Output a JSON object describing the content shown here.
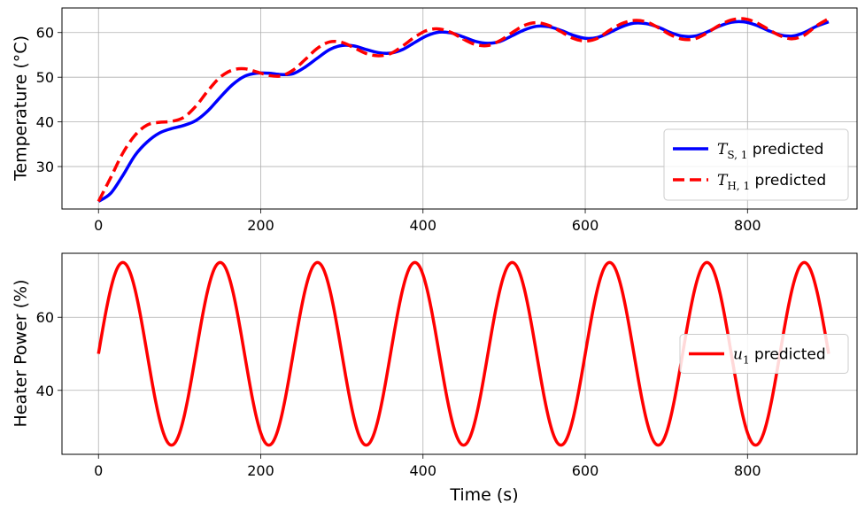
{
  "chart_data": [
    {
      "type": "line",
      "xlabel": "",
      "ylabel": "Temperature (°C)",
      "xlim": [
        -45,
        935
      ],
      "ylim": [
        20.5,
        65.5
      ],
      "xticks": [
        0,
        200,
        400,
        600,
        800
      ],
      "xtick_labels": [
        "0",
        "200",
        "400",
        "600",
        "800"
      ],
      "yticks": [
        30,
        40,
        50,
        60
      ],
      "ytick_labels": [
        "30",
        "40",
        "50",
        "60"
      ],
      "grid": true,
      "legend_position": "lower-right",
      "series": [
        {
          "name": "T_{S,1} predicted",
          "legend": {
            "symbol": "T",
            "sub": "S, 1",
            "text": " predicted"
          },
          "color": "#0000ff",
          "style": "solid",
          "x": [
            0,
            15,
            30,
            45,
            60,
            75,
            90,
            105,
            120,
            135,
            150,
            165,
            180,
            195,
            210,
            225,
            240,
            255,
            270,
            285,
            300,
            315,
            330,
            345,
            360,
            375,
            390,
            405,
            420,
            435,
            450,
            465,
            480,
            495,
            510,
            525,
            540,
            555,
            570,
            585,
            600,
            615,
            630,
            645,
            660,
            675,
            690,
            705,
            720,
            735,
            750,
            765,
            780,
            795,
            810,
            825,
            840,
            855,
            870,
            885,
            900
          ],
          "y": [
            22.2,
            24.0,
            28.0,
            32.5,
            35.5,
            37.5,
            38.5,
            39.2,
            40.3,
            42.5,
            45.5,
            48.3,
            50.2,
            50.9,
            50.9,
            50.6,
            50.8,
            52.3,
            54.3,
            56.2,
            57.1,
            57.0,
            56.2,
            55.5,
            55.4,
            56.2,
            57.8,
            59.3,
            60.1,
            59.9,
            59.0,
            58.0,
            57.6,
            58.0,
            59.3,
            60.6,
            61.4,
            61.3,
            60.5,
            59.4,
            58.7,
            58.9,
            60.0,
            61.3,
            62.1,
            62.0,
            61.2,
            60.0,
            59.2,
            59.2,
            60.1,
            61.4,
            62.3,
            62.4,
            61.7,
            60.5,
            59.5,
            59.2,
            60.0,
            61.4,
            62.4
          ]
        },
        {
          "name": "T_{H,1} predicted",
          "legend": {
            "symbol": "T",
            "sub": "H, 1",
            "text": " predicted"
          },
          "color": "#ff0000",
          "style": "dashed",
          "x": [
            0,
            15,
            30,
            45,
            60,
            75,
            90,
            105,
            120,
            135,
            150,
            165,
            180,
            195,
            210,
            225,
            240,
            255,
            270,
            285,
            300,
            315,
            330,
            345,
            360,
            375,
            390,
            405,
            420,
            435,
            450,
            465,
            480,
            495,
            510,
            525,
            540,
            555,
            570,
            585,
            600,
            615,
            630,
            645,
            660,
            675,
            690,
            705,
            720,
            735,
            750,
            765,
            780,
            795,
            810,
            825,
            840,
            855,
            870,
            885,
            900
          ],
          "y": [
            22.2,
            27.5,
            33.0,
            37.0,
            39.3,
            39.9,
            40.1,
            41.0,
            43.5,
            47.0,
            50.0,
            51.6,
            51.9,
            51.2,
            50.4,
            50.3,
            51.6,
            54.0,
            56.5,
            57.9,
            57.8,
            56.6,
            55.3,
            54.8,
            55.3,
            57.0,
            59.0,
            60.5,
            60.8,
            60.0,
            58.5,
            57.3,
            57.1,
            58.2,
            60.0,
            61.6,
            62.2,
            61.6,
            60.2,
            58.7,
            58.1,
            58.7,
            60.5,
            62.0,
            62.7,
            62.4,
            61.1,
            59.5,
            58.5,
            58.6,
            59.9,
            61.6,
            62.8,
            63.1,
            62.3,
            60.8,
            59.3,
            58.6,
            59.4,
            61.5,
            63.1
          ]
        }
      ]
    },
    {
      "type": "line",
      "xlabel": "Time (s)",
      "ylabel": "Heater Power (%)",
      "xlim": [
        -45,
        935
      ],
      "ylim": [
        22.5,
        77.5
      ],
      "xticks": [
        0,
        200,
        400,
        600,
        800
      ],
      "xtick_labels": [
        "0",
        "200",
        "400",
        "600",
        "800"
      ],
      "yticks": [
        40,
        60
      ],
      "ytick_labels": [
        "40",
        "60"
      ],
      "grid": true,
      "legend_position": "center-right",
      "series": [
        {
          "name": "u_1 predicted",
          "legend": {
            "symbol": "u",
            "sub": "1",
            "text": " predicted"
          },
          "color": "#ff0000",
          "style": "solid",
          "function": {
            "kind": "sine",
            "offset": 50,
            "amplitude": 25,
            "period": 120,
            "x_start": 0,
            "x_end": 900,
            "x_step": 5
          }
        }
      ]
    }
  ]
}
